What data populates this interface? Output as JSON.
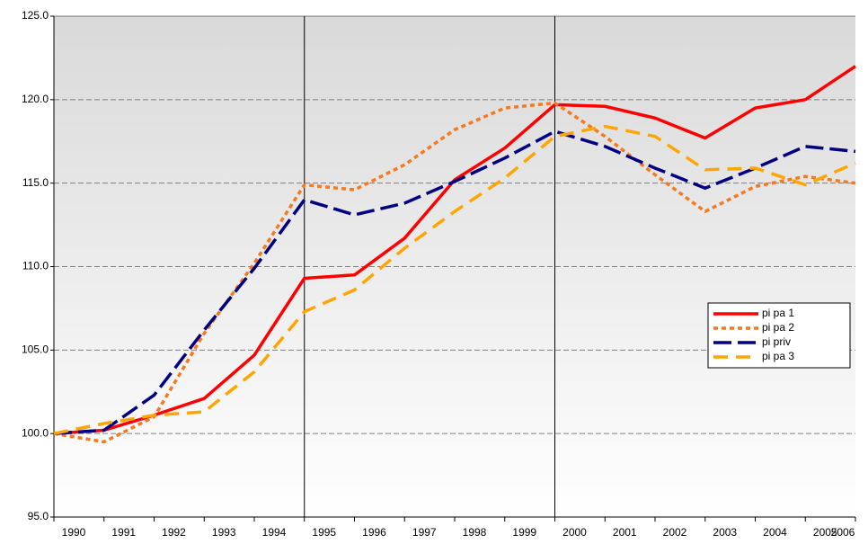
{
  "chart_data": {
    "type": "line",
    "categories": [
      "1990",
      "1991",
      "1992",
      "1993",
      "1994",
      "1995",
      "1996",
      "1997",
      "1998",
      "1999",
      "2000",
      "2001",
      "2002",
      "2003",
      "2004",
      "2005",
      "2006"
    ],
    "series": [
      {
        "name": "pi pa 1",
        "color": "#ff0000",
        "dash": "solid",
        "values": [
          100,
          100.2,
          101.1,
          102.1,
          104.7,
          109.3,
          109.5,
          111.7,
          115.2,
          117.1,
          119.7,
          119.6,
          118.9,
          117.7,
          119.5,
          120.0,
          122.0
        ]
      },
      {
        "name": "pi pa 2",
        "color": "#f47a20",
        "dash": "dotted",
        "values": [
          100,
          99.5,
          101.0,
          106.0,
          110.2,
          114.9,
          114.6,
          116.1,
          118.2,
          119.5,
          119.8,
          117.8,
          115.5,
          113.3,
          114.8,
          115.4,
          115.0
        ]
      },
      {
        "name": "pi priv",
        "color": "#000080",
        "dash": "dashed",
        "values": [
          100,
          100.2,
          102.3,
          106.2,
          109.9,
          114.0,
          113.1,
          113.8,
          115.1,
          116.5,
          118.1,
          117.2,
          115.9,
          114.7,
          115.9,
          117.2,
          116.9
        ]
      },
      {
        "name": "pi pa 3",
        "color": "#ffa500",
        "dash": "longdash",
        "values": [
          100,
          100.6,
          101.1,
          101.3,
          103.7,
          107.3,
          108.6,
          111.1,
          113.3,
          115.3,
          117.8,
          118.4,
          117.8,
          115.8,
          115.9,
          114.9,
          116.2
        ]
      }
    ],
    "ylim": [
      95,
      125
    ],
    "yticks": [
      {
        "value": 95,
        "label": "95.0"
      },
      {
        "value": 100,
        "label": "100.0"
      },
      {
        "value": 105,
        "label": "105.0"
      },
      {
        "value": 110,
        "label": "110.0"
      },
      {
        "value": 115,
        "label": "115.0"
      },
      {
        "value": 120,
        "label": "120.0"
      },
      {
        "value": 125,
        "label": "125.0"
      }
    ],
    "grid": true,
    "vlines": [
      "1995",
      "2000"
    ],
    "legend": "right"
  }
}
